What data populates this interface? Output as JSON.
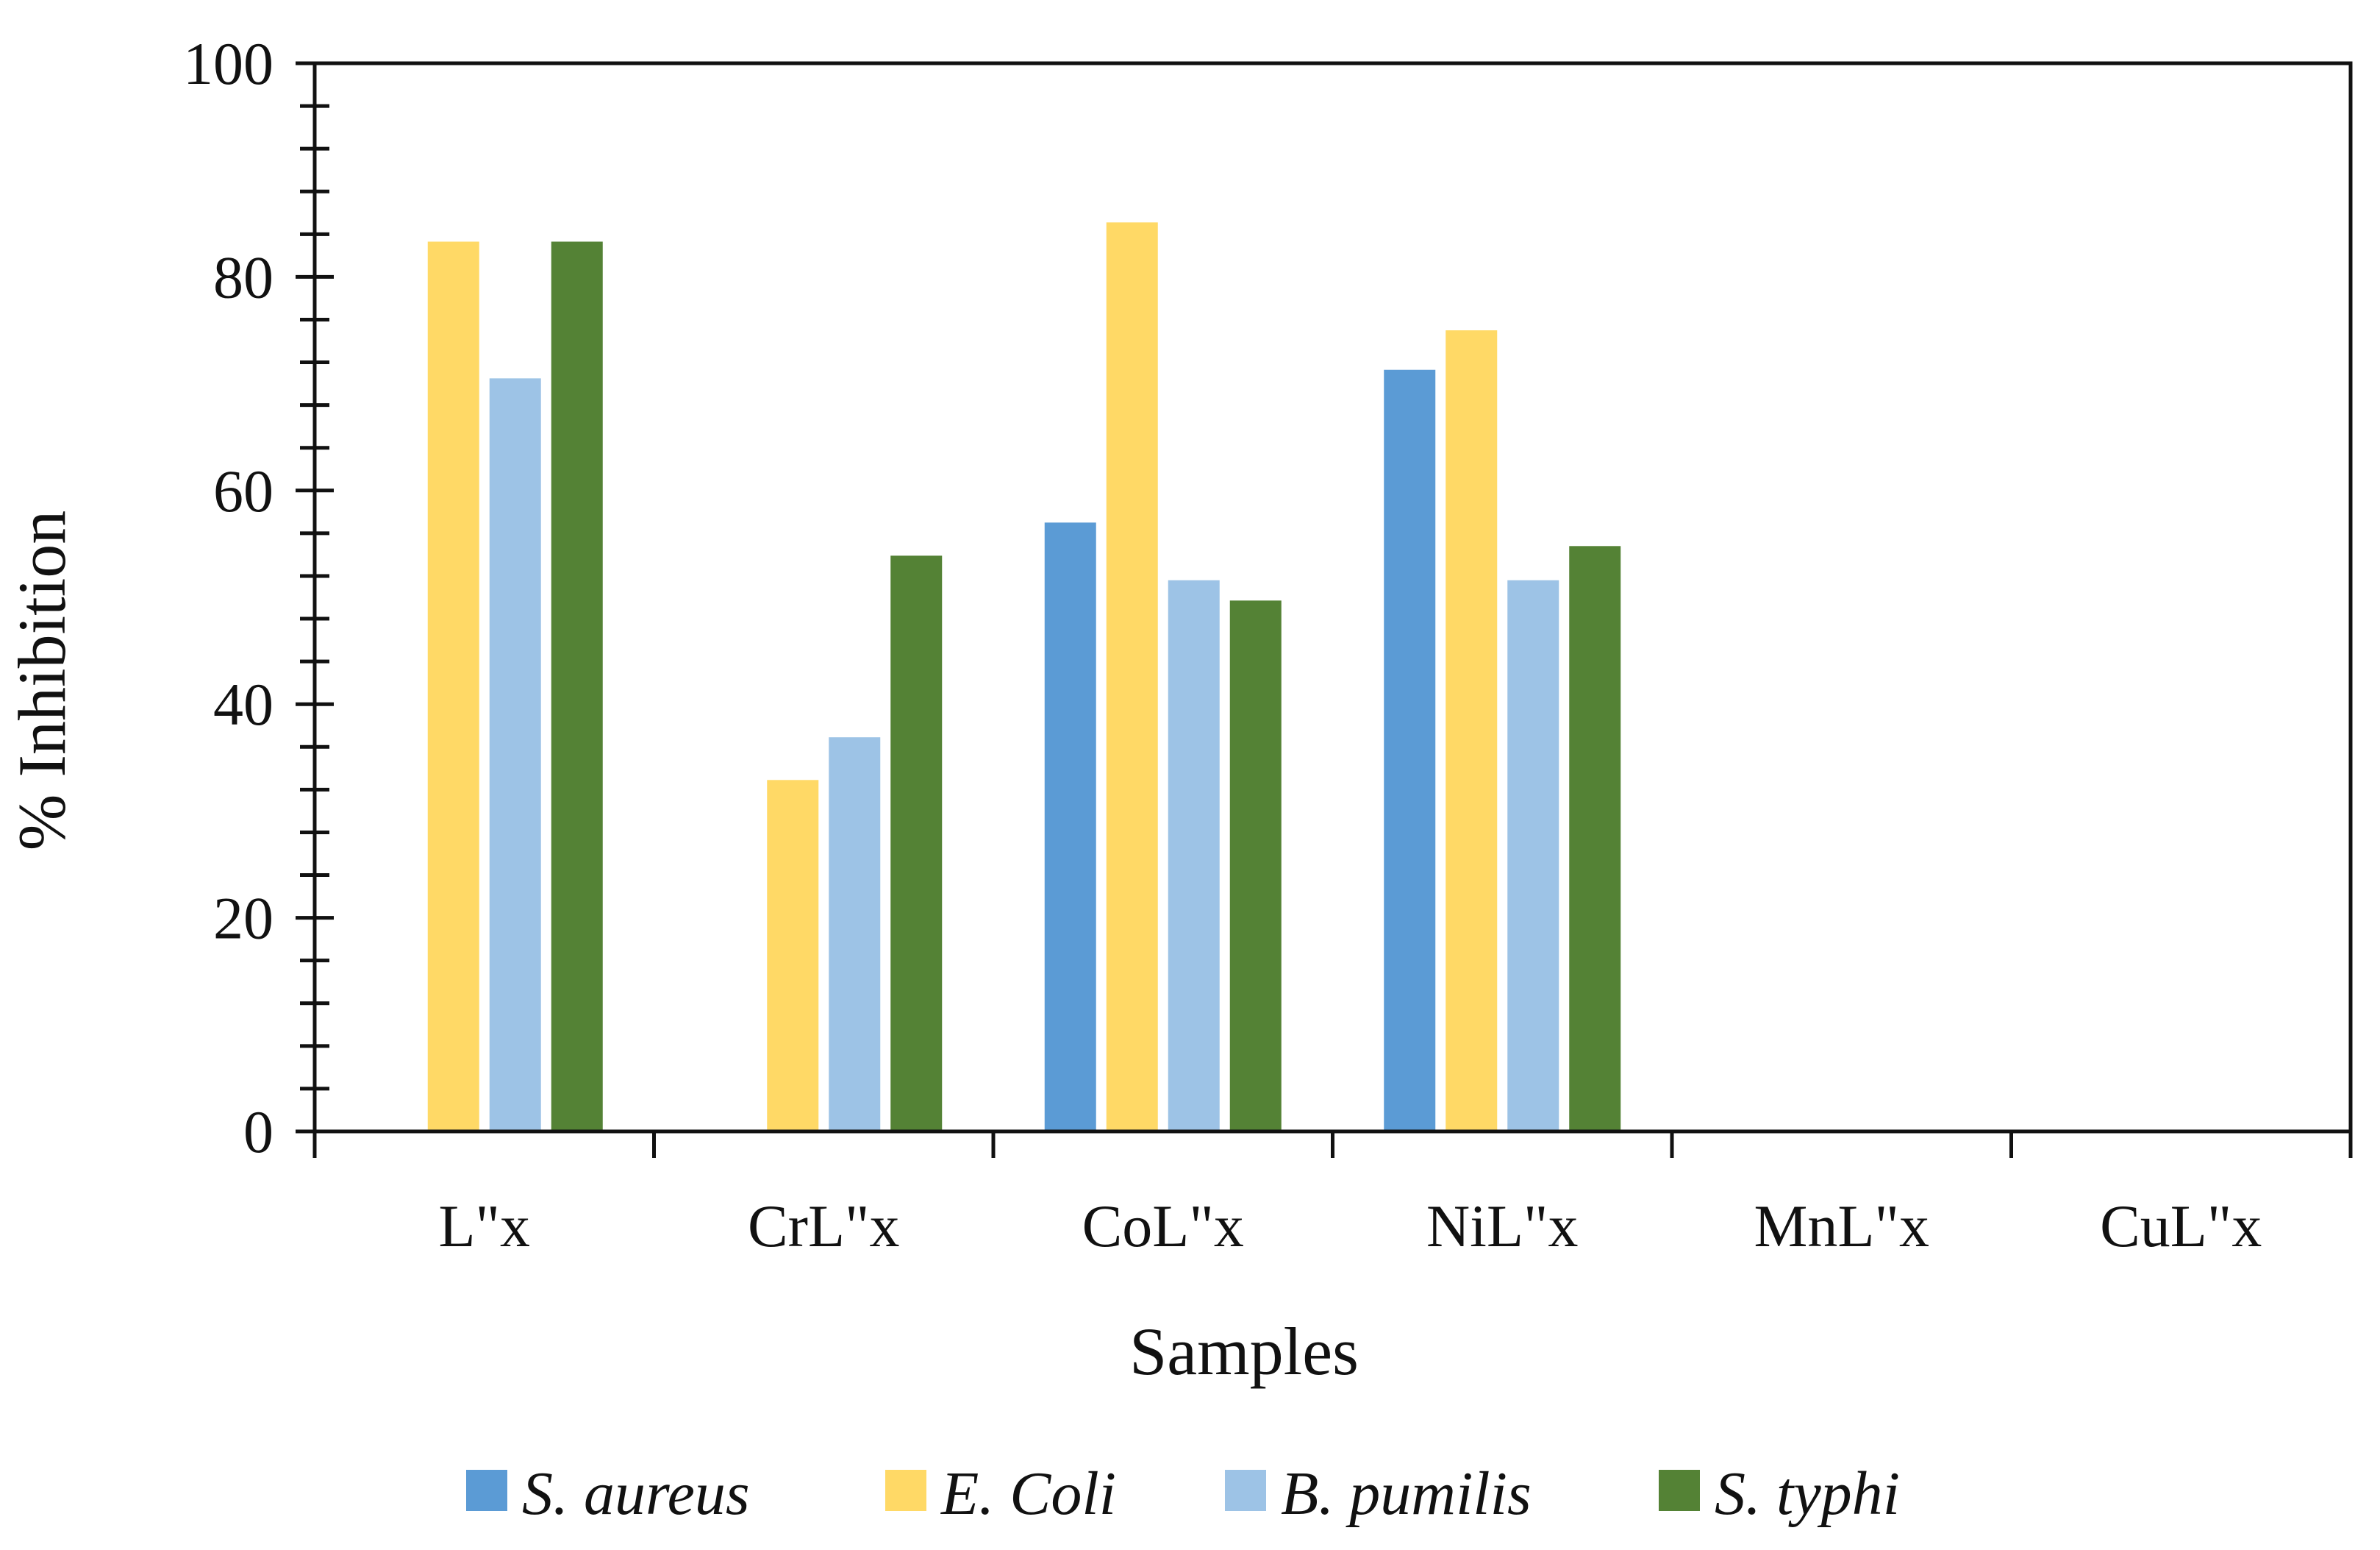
{
  "chart_data": {
    "type": "bar",
    "title": "",
    "xlabel": "Samples",
    "ylabel": "% Inhibition",
    "ylim": [
      0,
      100
    ],
    "y_major_ticks": [
      0,
      20,
      40,
      60,
      80,
      100
    ],
    "y_minor_step": 4,
    "grid": false,
    "legend_position": "bottom",
    "categories": [
      "L\"x",
      "CrL\"x",
      "CoL\"x",
      "NiL\"x",
      "MnL\"x",
      "CuL\"x"
    ],
    "series": [
      {
        "name": "S. aureus",
        "color": "#5B9BD5",
        "values": [
          0,
          0,
          57,
          71.3,
          0,
          0
        ]
      },
      {
        "name": "E. Coli",
        "color": "#FFD966",
        "values": [
          83.3,
          32.9,
          85.1,
          75,
          0,
          0
        ]
      },
      {
        "name": "B. pumilis",
        "color": "#9DC3E6",
        "values": [
          70.5,
          36.9,
          51.6,
          51.6,
          0,
          0
        ]
      },
      {
        "name": "S. typhi",
        "color": "#548235",
        "values": [
          83.3,
          53.9,
          49.7,
          54.8,
          0,
          0
        ]
      }
    ]
  }
}
